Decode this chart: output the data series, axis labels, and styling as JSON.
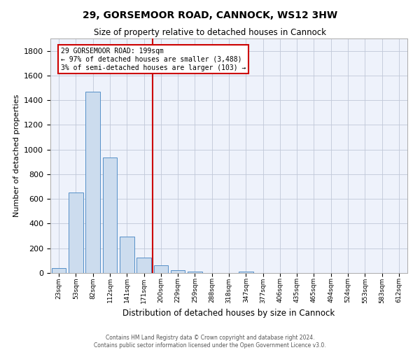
{
  "title1": "29, GORSEMOOR ROAD, CANNOCK, WS12 3HW",
  "title2": "Size of property relative to detached houses in Cannock",
  "xlabel": "Distribution of detached houses by size in Cannock",
  "ylabel": "Number of detached properties",
  "bar_labels": [
    "23sqm",
    "53sqm",
    "82sqm",
    "112sqm",
    "141sqm",
    "171sqm",
    "200sqm",
    "229sqm",
    "259sqm",
    "288sqm",
    "318sqm",
    "347sqm",
    "377sqm",
    "406sqm",
    "435sqm",
    "465sqm",
    "494sqm",
    "524sqm",
    "553sqm",
    "583sqm",
    "612sqm"
  ],
  "bar_values": [
    40,
    650,
    1470,
    935,
    295,
    125,
    65,
    25,
    12,
    0,
    0,
    12,
    0,
    0,
    0,
    0,
    0,
    0,
    0,
    0,
    0
  ],
  "bar_color": "#ccdcee",
  "bar_edgecolor": "#5590c8",
  "background_color": "#eef2fb",
  "grid_color": "#c0c8d8",
  "annotation_line1": "29 GORSEMOOR ROAD: 199sqm",
  "annotation_line2": "← 97% of detached houses are smaller (3,488)",
  "annotation_line3": "3% of semi-detached houses are larger (103) →",
  "annotation_box_edgecolor": "#cc0000",
  "vline_color": "#cc0000",
  "vline_x_idx": 5.5,
  "ylim": [
    0,
    1900
  ],
  "yticks": [
    0,
    200,
    400,
    600,
    800,
    1000,
    1200,
    1400,
    1600,
    1800
  ],
  "footer1": "Contains HM Land Registry data © Crown copyright and database right 2024.",
  "footer2": "Contains public sector information licensed under the Open Government Licence v3.0."
}
